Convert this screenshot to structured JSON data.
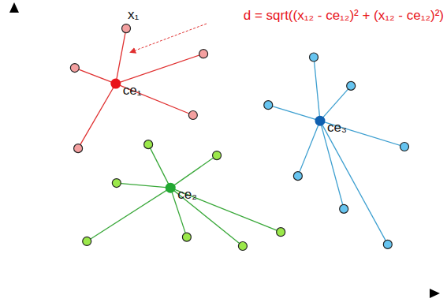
{
  "chart_data": {
    "type": "scatter",
    "xlim": [
      0,
      100
    ],
    "ylim": [
      0,
      100
    ],
    "tick_labels": false,
    "marker": "circle",
    "annotation": "d = sqrt((x₁₂ - ce₁₂)² + (x₁₂ - ce₁₂)²)",
    "series": [
      {
        "label": "ce₁",
        "color": "#e8141a",
        "point_color": "#f4a0a0",
        "line_color": "#e03030",
        "centroid": [
          24.3,
          74.5
        ],
        "x": [
          26.8,
          14.5,
          45.3,
          42.8,
          15.3
        ],
        "y": [
          94.1,
          80.1,
          85.1,
          63.3,
          51.5
        ],
        "point_labels": [
          "x₁",
          null,
          null,
          null,
          null
        ]
      },
      {
        "label": "ce₂",
        "color": "#22a832",
        "point_color": "#9be84a",
        "line_color": "#3aa83a",
        "centroid": [
          37.4,
          37.5
        ],
        "x": [
          32.1,
          48.5,
          24.5,
          17.4,
          41.3,
          54.7,
          63.8
        ],
        "y": [
          52.9,
          49.0,
          39.2,
          18.5,
          20.0,
          16.8,
          21.8
        ]
      },
      {
        "label": "ce₃",
        "color": "#1060b0",
        "point_color": "#66c4f0",
        "line_color": "#3d9fd0",
        "centroid": [
          73.2,
          61.3
        ],
        "x": [
          71.7,
          80.6,
          60.8,
          93.4,
          67.9,
          78.9,
          89.4
        ],
        "y": [
          83.9,
          73.7,
          66.9,
          52.1,
          41.7,
          30.0,
          17.4
        ]
      }
    ]
  }
}
